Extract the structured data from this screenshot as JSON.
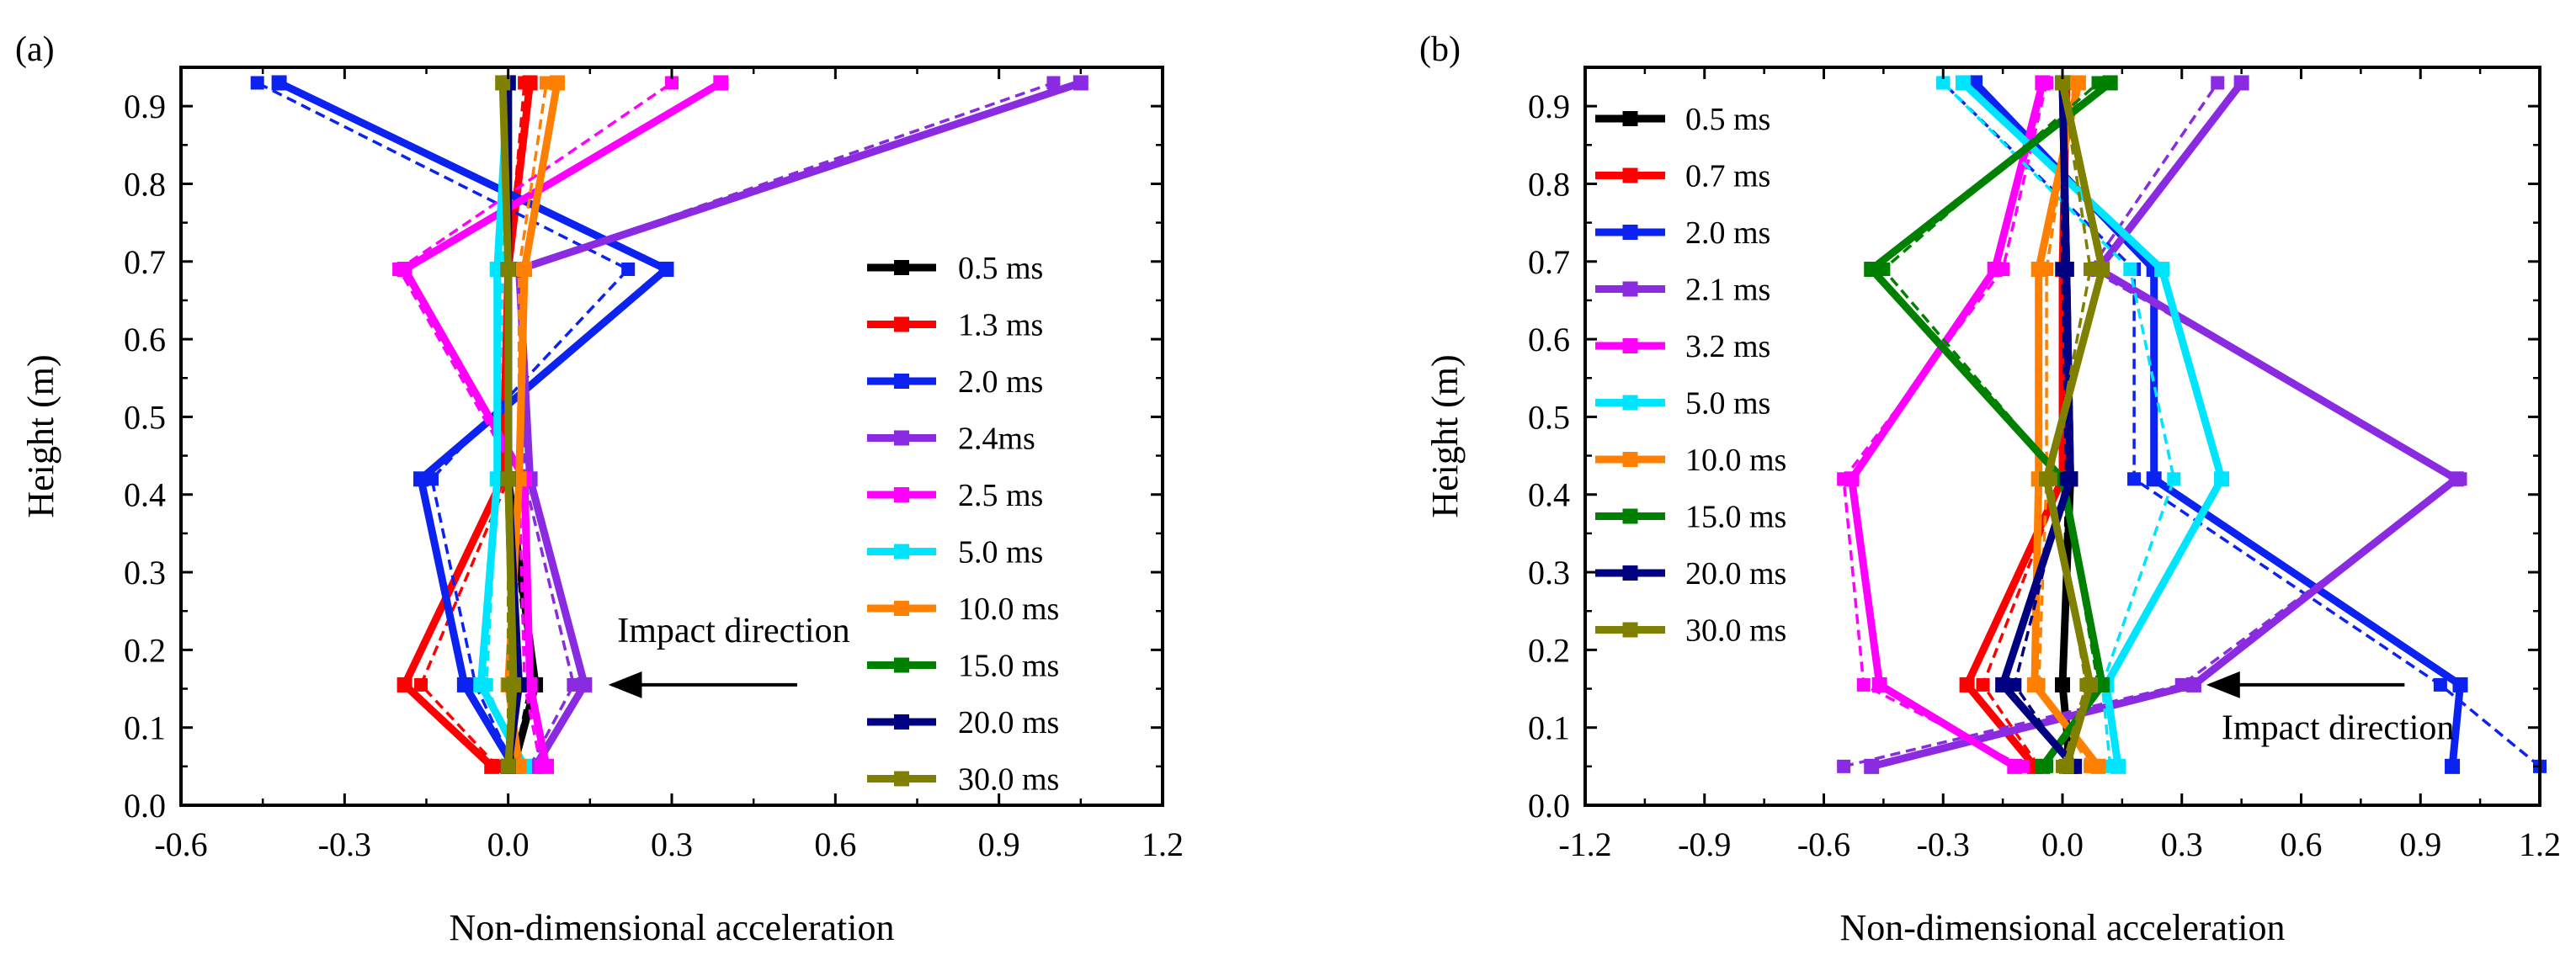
{
  "figure": {
    "annotation_text": "Impact direction",
    "colors": {
      "black": "#000000",
      "red": "#ff0000",
      "blue": "#0b22f0",
      "violet": "#8a2be2",
      "magenta": "#ff00ff",
      "cyan": "#00e5ff",
      "orange": "#ff8000",
      "green": "#008000",
      "navy": "#000080",
      "olive": "#808000",
      "gray": "#999999"
    }
  },
  "chart_data": [
    {
      "type": "line",
      "panel_label": "(a)",
      "xlabel": "Non-dimensional acceleration",
      "ylabel": "Height (m)",
      "xlim": [
        -0.6,
        1.2
      ],
      "ylim": [
        0.0,
        0.95
      ],
      "xticks": [
        "-0.6",
        "-0.3",
        "0.0",
        "0.3",
        "0.6",
        "0.9",
        "1.2"
      ],
      "yticks": [
        "0.0",
        "0.1",
        "0.2",
        "0.3",
        "0.4",
        "0.5",
        "0.6",
        "0.7",
        "0.8",
        "0.9"
      ],
      "legend": "right",
      "annotation": {
        "text_x": 0.2,
        "text_y": 0.21,
        "arrow_from": [
          0.53,
          0.155
        ],
        "arrow_to": [
          0.19,
          0.155
        ]
      },
      "heights": [
        0.05,
        0.155,
        0.42,
        0.69,
        0.93
      ],
      "series": [
        {
          "name": "0.5 ms",
          "color": "black",
          "solid": [
            0.01,
            0.05,
            0.0,
            0.0,
            0.0
          ],
          "dashed": [
            0.01,
            0.04,
            0.0,
            0.0,
            0.0
          ]
        },
        {
          "name": "1.3 ms",
          "color": "red",
          "solid": [
            -0.03,
            -0.19,
            -0.01,
            0.0,
            0.04
          ],
          "dashed": [
            -0.02,
            -0.16,
            0.0,
            0.0,
            0.03
          ]
        },
        {
          "name": "2.0 ms",
          "color": "blue",
          "solid": [
            0.01,
            -0.08,
            -0.16,
            0.29,
            -0.42
          ],
          "dashed": [
            0.01,
            -0.06,
            -0.14,
            0.22,
            -0.46
          ]
        },
        {
          "name": "2.4ms",
          "color": "violet",
          "solid": [
            0.05,
            0.14,
            0.04,
            0.02,
            1.05
          ],
          "dashed": [
            0.04,
            0.12,
            0.03,
            0.02,
            1.0
          ]
        },
        {
          "name": "2.5 ms",
          "color": "magenta",
          "solid": [
            0.07,
            0.04,
            0.03,
            -0.19,
            0.39
          ],
          "dashed": [
            0.06,
            0.03,
            0.02,
            -0.2,
            0.3
          ]
        },
        {
          "name": "5.0 ms",
          "color": "cyan",
          "solid": [
            0.03,
            -0.05,
            -0.02,
            -0.02,
            0.0
          ],
          "dashed": [
            0.02,
            -0.04,
            -0.02,
            -0.01,
            0.0
          ]
        },
        {
          "name": "10.0 ms",
          "color": "orange",
          "solid": [
            0.02,
            0.0,
            0.02,
            0.03,
            0.09
          ],
          "dashed": [
            0.02,
            0.0,
            0.02,
            0.02,
            0.07
          ]
        },
        {
          "name": "15.0 ms",
          "color": "green",
          "solid": [
            0.0,
            0.01,
            0.0,
            0.0,
            0.0
          ],
          "dashed": [
            0.0,
            0.01,
            0.0,
            0.0,
            0.0
          ]
        },
        {
          "name": "20.0 ms",
          "color": "navy",
          "solid": [
            0.0,
            0.02,
            0.0,
            0.0,
            0.0
          ],
          "dashed": [
            0.0,
            0.02,
            0.0,
            0.0,
            0.0
          ]
        },
        {
          "name": "30.0 ms",
          "color": "olive",
          "solid": [
            0.0,
            0.01,
            0.0,
            0.0,
            -0.01
          ],
          "dashed": [
            0.0,
            0.0,
            0.0,
            0.0,
            -0.01
          ]
        }
      ]
    },
    {
      "type": "line",
      "panel_label": "(b)",
      "xlabel": "Non-dimensional acceleration",
      "ylabel": "Height (m)",
      "xlim": [
        -1.2,
        1.2
      ],
      "ylim": [
        0.0,
        0.95
      ],
      "xticks": [
        "-1.2",
        "-0.9",
        "-0.6",
        "-0.3",
        "0.0",
        "0.3",
        "0.6",
        "0.9",
        "1.2"
      ],
      "yticks": [
        "0.0",
        "0.1",
        "0.2",
        "0.3",
        "0.4",
        "0.5",
        "0.6",
        "0.7",
        "0.8",
        "0.9"
      ],
      "legend": "top-left",
      "annotation": {
        "text_x": 0.4,
        "text_y": 0.085,
        "arrow_from": [
          0.86,
          0.155
        ],
        "arrow_to": [
          0.37,
          0.155
        ]
      },
      "heights": [
        0.05,
        0.155,
        0.42,
        0.69,
        0.93
      ],
      "series": [
        {
          "name": "0.5 ms",
          "color": "black",
          "solid": [
            0.02,
            0.0,
            0.02,
            0.01,
            0.0
          ],
          "dashed": [
            0.01,
            0.0,
            0.01,
            0.0,
            0.0
          ]
        },
        {
          "name": "0.7 ms",
          "color": "red",
          "solid": [
            -0.07,
            -0.24,
            0.0,
            0.0,
            0.01
          ],
          "dashed": [
            -0.06,
            -0.2,
            0.0,
            0.0,
            0.01
          ]
        },
        {
          "name": "2.0 ms",
          "color": "blue",
          "solid": [
            0.98,
            1.0,
            0.23,
            0.23,
            -0.22
          ],
          "dashed": [
            1.2,
            0.95,
            0.18,
            0.18,
            -0.3
          ]
        },
        {
          "name": "2.1 ms",
          "color": "violet",
          "solid": [
            -0.48,
            0.33,
            0.99,
            0.09,
            0.45
          ],
          "dashed": [
            -0.55,
            0.3,
            1.0,
            0.07,
            0.39
          ]
        },
        {
          "name": "3.2 ms",
          "color": "magenta",
          "solid": [
            -0.12,
            -0.46,
            -0.53,
            -0.17,
            -0.05
          ],
          "dashed": [
            -0.1,
            -0.5,
            -0.55,
            -0.15,
            -0.04
          ]
        },
        {
          "name": "5.0 ms",
          "color": "cyan",
          "solid": [
            0.14,
            0.11,
            0.4,
            0.25,
            -0.25
          ],
          "dashed": [
            0.12,
            0.1,
            0.28,
            0.17,
            -0.3
          ]
        },
        {
          "name": "10.0 ms",
          "color": "orange",
          "solid": [
            0.09,
            -0.07,
            -0.06,
            -0.06,
            0.04
          ],
          "dashed": [
            0.07,
            -0.06,
            -0.04,
            -0.04,
            0.03
          ]
        },
        {
          "name": "15.0 ms",
          "color": "green",
          "solid": [
            -0.05,
            0.1,
            0.0,
            -0.48,
            0.12
          ],
          "dashed": [
            -0.04,
            0.09,
            0.0,
            -0.45,
            0.09
          ]
        },
        {
          "name": "20.0 ms",
          "color": "navy",
          "solid": [
            0.03,
            -0.15,
            0.02,
            0.01,
            0.0
          ],
          "dashed": [
            0.02,
            -0.12,
            0.01,
            0.0,
            0.0
          ]
        },
        {
          "name": "30.0 ms",
          "color": "olive",
          "solid": [
            0.01,
            0.07,
            -0.04,
            0.1,
            0.0
          ],
          "dashed": [
            0.0,
            0.06,
            -0.03,
            0.07,
            0.0
          ]
        }
      ]
    }
  ]
}
